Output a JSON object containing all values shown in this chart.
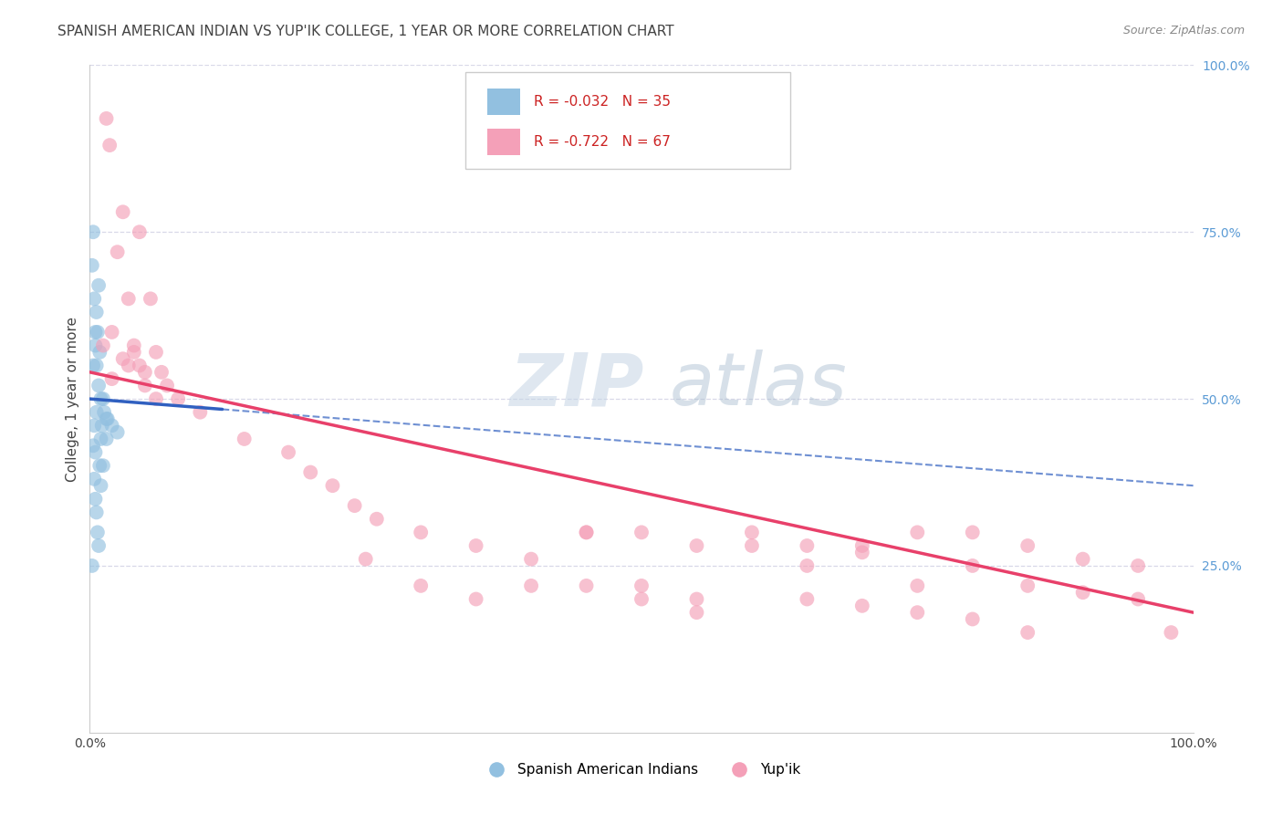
{
  "title": "SPANISH AMERICAN INDIAN VS YUP'IK COLLEGE, 1 YEAR OR MORE CORRELATION CHART",
  "source": "Source: ZipAtlas.com",
  "ylabel": "College, 1 year or more",
  "legend_blue_r": "R = -0.032",
  "legend_blue_n": "N = 35",
  "legend_pink_r": "R = -0.722",
  "legend_pink_n": "N = 67",
  "legend_blue_label": "Spanish American Indians",
  "legend_pink_label": "Yup'ik",
  "blue_scatter_x": [
    0.2,
    0.3,
    0.4,
    0.5,
    0.5,
    0.6,
    0.6,
    0.7,
    0.8,
    0.8,
    0.9,
    1.0,
    1.0,
    1.1,
    1.2,
    1.3,
    1.5,
    1.6,
    2.0,
    2.5,
    0.3,
    0.4,
    0.5,
    0.6,
    0.7,
    0.8,
    0.9,
    1.0,
    1.2,
    1.5,
    0.3,
    0.5,
    0.6,
    0.4,
    0.2
  ],
  "blue_scatter_y": [
    70,
    75,
    65,
    60,
    58,
    55,
    63,
    60,
    67,
    52,
    57,
    50,
    44,
    46,
    50,
    48,
    47,
    47,
    46,
    45,
    43,
    38,
    35,
    33,
    30,
    28,
    40,
    37,
    40,
    44,
    55,
    42,
    48,
    46,
    25
  ],
  "pink_scatter_x": [
    1.5,
    1.8,
    3.0,
    4.5,
    2.5,
    5.5,
    3.5,
    2.0,
    1.2,
    4.0,
    6.0,
    3.0,
    4.5,
    5.0,
    6.5,
    7.0,
    2.0,
    3.5,
    5.0,
    8.0,
    4.0,
    6.0,
    10.0,
    14.0,
    18.0,
    20.0,
    22.0,
    24.0,
    26.0,
    30.0,
    35.0,
    40.0,
    45.0,
    50.0,
    55.0,
    60.0,
    65.0,
    70.0,
    75.0,
    80.0,
    85.0,
    90.0,
    95.0,
    98.0,
    40.0,
    45.0,
    50.0,
    55.0,
    60.0,
    65.0,
    70.0,
    75.0,
    80.0,
    85.0,
    90.0,
    95.0,
    25.0,
    30.0,
    35.0,
    45.0,
    50.0,
    55.0,
    65.0,
    70.0,
    75.0,
    80.0,
    85.0
  ],
  "pink_scatter_y": [
    92,
    88,
    78,
    75,
    72,
    65,
    65,
    60,
    58,
    57,
    57,
    56,
    55,
    54,
    54,
    52,
    53,
    55,
    52,
    50,
    58,
    50,
    48,
    44,
    42,
    39,
    37,
    34,
    32,
    30,
    28,
    26,
    30,
    30,
    28,
    28,
    28,
    27,
    30,
    30,
    28,
    26,
    25,
    15,
    22,
    30,
    22,
    20,
    30,
    25,
    28,
    22,
    25,
    22,
    21,
    20,
    26,
    22,
    20,
    22,
    20,
    18,
    20,
    19,
    18,
    17,
    15
  ],
  "blue_line_x0": 0,
  "blue_line_y0": 50,
  "blue_line_x1": 100,
  "blue_line_y1": 37,
  "pink_line_x0": 0,
  "pink_line_y0": 54,
  "pink_line_x1": 100,
  "pink_line_y1": 18,
  "blue_solid_end": 12,
  "xlim": [
    0,
    100
  ],
  "ylim": [
    0,
    100
  ],
  "blue_color": "#92c0e0",
  "pink_color": "#f4a0b8",
  "blue_line_color": "#3060c0",
  "pink_line_color": "#e8406a",
  "background_color": "#ffffff",
  "grid_color": "#d8d8e8",
  "right_tick_color": "#5b9bd5",
  "title_color": "#444444",
  "source_color": "#888888",
  "legend_r_color": "#cc2222"
}
